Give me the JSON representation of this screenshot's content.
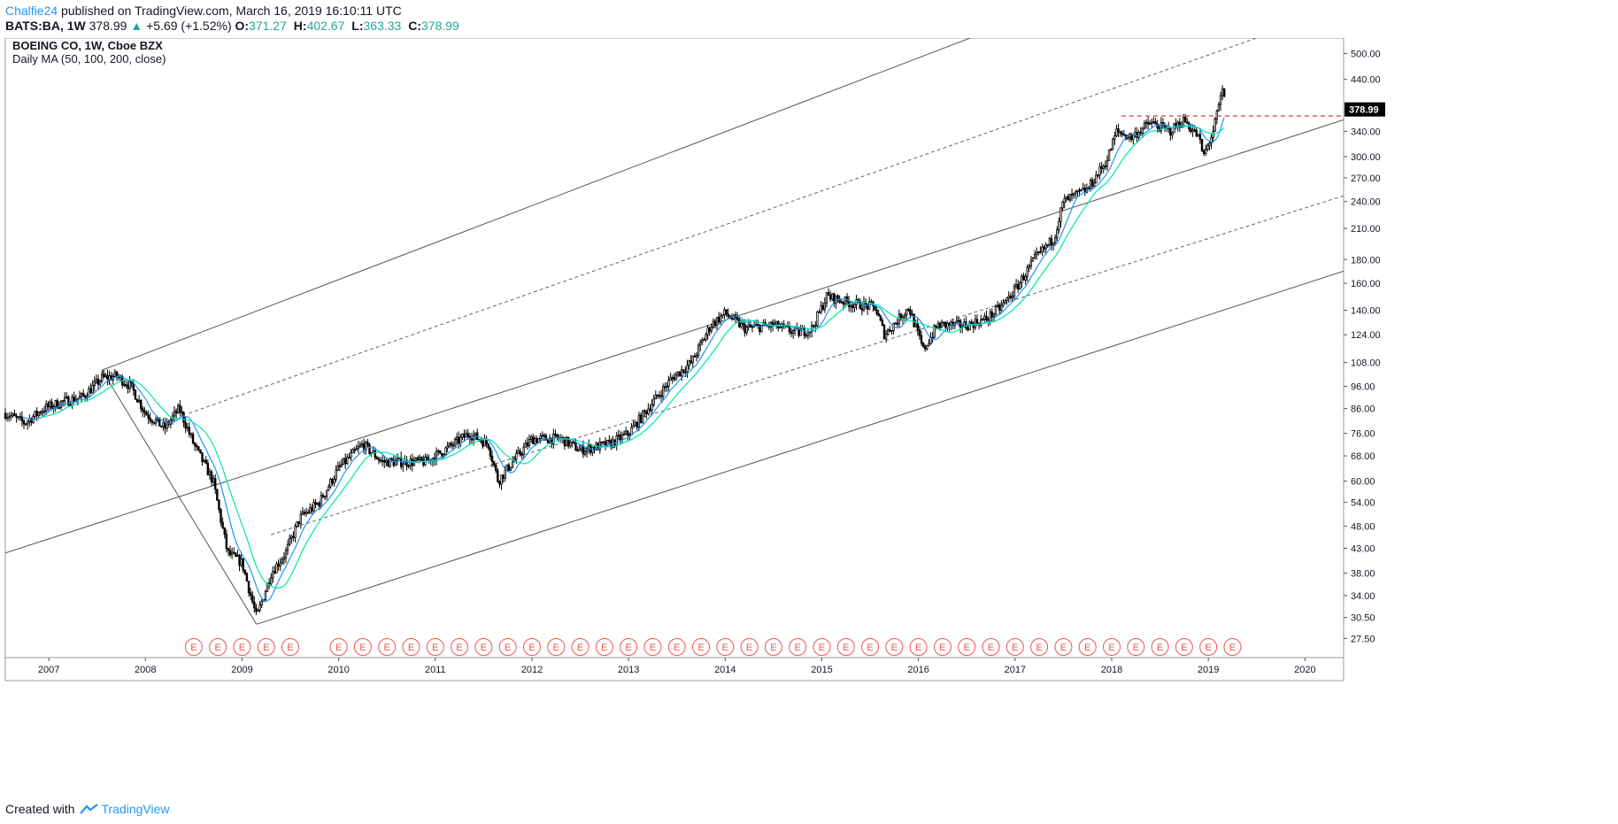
{
  "header": {
    "author": "Chalfie24",
    "published_text": "published on TradingView.com, March 16, 2019 16:10:11 UTC",
    "symbol": "BATS:BA, 1W",
    "last": "378.99",
    "change": "+5.69 (+1.52%)",
    "open_label": "O:",
    "open": "371.27",
    "high_label": "H:",
    "high": "402.67",
    "low_label": "L:",
    "low": "363.33",
    "close_label": "C:",
    "close": "378.99"
  },
  "legend": {
    "title": "BOEING CO, 1W, Cboe BZX",
    "study": "Daily MA (50, 100, 200, close)"
  },
  "footer": {
    "created_with": "Created with",
    "brand": "TradingView"
  },
  "colors": {
    "candle": "#000000",
    "ma_blue": "#2196f3",
    "ma_teal": "#00e5b0",
    "earnings": "#ef5350",
    "price_tag_bg": "#000000",
    "resistance": "#e53935",
    "channel": "#555555"
  },
  "chart_data": {
    "type": "candlestick",
    "title": "BOEING CO, 1W, Cboe BZX",
    "y_scale": "log",
    "ylim": [
      25,
      540
    ],
    "xlim": [
      2006.55,
      2020.4
    ],
    "y_ticks": [
      "500.00",
      "440.00",
      "340.00",
      "300.00",
      "270.00",
      "240.00",
      "210.00",
      "180.00",
      "160.00",
      "140.00",
      "124.00",
      "108.00",
      "96.00",
      "86.00",
      "76.00",
      "68.00",
      "60.00",
      "54.00",
      "48.00",
      "43.00",
      "38.00",
      "34.00",
      "30.50",
      "27.50"
    ],
    "x_ticks": [
      "2007",
      "2008",
      "2009",
      "2010",
      "2011",
      "2012",
      "2013",
      "2014",
      "2015",
      "2016",
      "2017",
      "2018",
      "2019",
      "2020"
    ],
    "last_price": 378.99,
    "price_path": [
      [
        2006.55,
        84
      ],
      [
        2006.75,
        80
      ],
      [
        2006.95,
        86
      ],
      [
        2007.15,
        89
      ],
      [
        2007.35,
        91
      ],
      [
        2007.55,
        100
      ],
      [
        2007.7,
        101
      ],
      [
        2007.85,
        96
      ],
      [
        2008.0,
        84
      ],
      [
        2008.2,
        78
      ],
      [
        2008.35,
        86
      ],
      [
        2008.5,
        72
      ],
      [
        2008.7,
        60
      ],
      [
        2008.85,
        42
      ],
      [
        2009.0,
        40
      ],
      [
        2009.15,
        30.5
      ],
      [
        2009.3,
        38
      ],
      [
        2009.45,
        42
      ],
      [
        2009.6,
        50
      ],
      [
        2009.8,
        54
      ],
      [
        2010.0,
        64
      ],
      [
        2010.25,
        72
      ],
      [
        2010.45,
        66
      ],
      [
        2010.7,
        66
      ],
      [
        2010.9,
        66
      ],
      [
        2011.1,
        70
      ],
      [
        2011.35,
        76
      ],
      [
        2011.55,
        72
      ],
      [
        2011.65,
        60
      ],
      [
        2011.8,
        66
      ],
      [
        2012.0,
        74
      ],
      [
        2012.3,
        74
      ],
      [
        2012.5,
        70
      ],
      [
        2012.8,
        72
      ],
      [
        2013.0,
        76
      ],
      [
        2013.2,
        86
      ],
      [
        2013.45,
        100
      ],
      [
        2013.65,
        108
      ],
      [
        2013.85,
        130
      ],
      [
        2014.0,
        138
      ],
      [
        2014.2,
        128
      ],
      [
        2014.5,
        130
      ],
      [
        2014.75,
        125
      ],
      [
        2014.9,
        128
      ],
      [
        2015.05,
        150
      ],
      [
        2015.3,
        145
      ],
      [
        2015.55,
        142
      ],
      [
        2015.65,
        124
      ],
      [
        2015.9,
        142
      ],
      [
        2016.05,
        115
      ],
      [
        2016.2,
        130
      ],
      [
        2016.5,
        130
      ],
      [
        2016.7,
        134
      ],
      [
        2016.85,
        142
      ],
      [
        2017.0,
        155
      ],
      [
        2017.2,
        180
      ],
      [
        2017.4,
        200
      ],
      [
        2017.5,
        240
      ],
      [
        2017.75,
        255
      ],
      [
        2017.95,
        295
      ],
      [
        2018.05,
        340
      ],
      [
        2018.2,
        330
      ],
      [
        2018.4,
        355
      ],
      [
        2018.6,
        340
      ],
      [
        2018.75,
        360
      ],
      [
        2018.9,
        330
      ],
      [
        2018.95,
        300
      ],
      [
        2019.05,
        340
      ],
      [
        2019.15,
        420
      ],
      [
        2019.18,
        378.99
      ]
    ],
    "series": [
      {
        "name": "MA 50",
        "color": "#2196f3"
      },
      {
        "name": "MA 100",
        "color": "#00e5b0"
      }
    ],
    "earnings_markers": {
      "label": "E",
      "dates": [
        2008.5,
        2008.75,
        2009.0,
        2009.25,
        2009.5,
        2010.0,
        2010.25,
        2010.5,
        2010.75,
        2011.0,
        2011.25,
        2011.5,
        2011.75,
        2012.0,
        2012.25,
        2012.5,
        2012.75,
        2013.0,
        2013.25,
        2013.5,
        2013.75,
        2014.0,
        2014.25,
        2014.5,
        2014.75,
        2015.0,
        2015.25,
        2015.5,
        2015.75,
        2016.0,
        2016.25,
        2016.5,
        2016.75,
        2017.0,
        2017.25,
        2017.5,
        2017.75,
        2018.0,
        2018.25,
        2018.5,
        2018.75,
        2019.0,
        2019.25
      ]
    },
    "trendlines": [
      {
        "style": "solid",
        "from": [
          2007.55,
          104
        ],
        "to": [
          2009.15,
          29.5
        ]
      },
      {
        "style": "solid",
        "from": [
          2007.55,
          104
        ],
        "to": [
          2017.95,
          700
        ]
      },
      {
        "style": "dashed",
        "from": [
          2008.45,
          84
        ],
        "to": [
          2019.5,
          540
        ]
      },
      {
        "style": "solid",
        "from": [
          2006.55,
          42
        ],
        "to": [
          2020.4,
          360
        ]
      },
      {
        "style": "dashed",
        "from": [
          2009.3,
          46
        ],
        "to": [
          2020.4,
          247
        ]
      },
      {
        "style": "solid",
        "from": [
          2009.15,
          29.5
        ],
        "to": [
          2020.4,
          170
        ]
      }
    ],
    "resistance_level": {
      "price": 367,
      "from": 2018.1,
      "to": 2020.4
    }
  }
}
